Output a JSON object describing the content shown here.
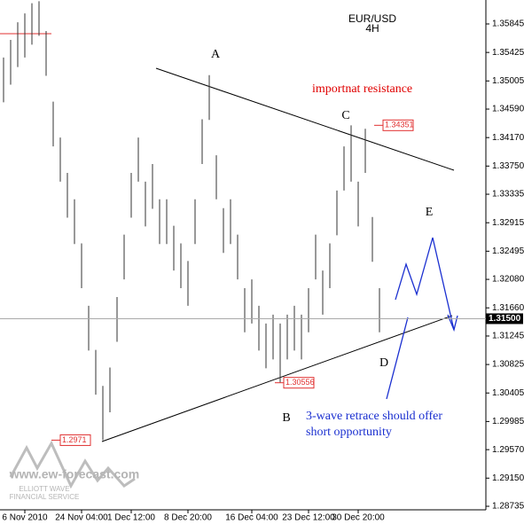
{
  "chart_data": {
    "type": "ohlc",
    "title": "EUR/USD",
    "subtitle": "4H",
    "categories": [
      null,
      null,
      null,
      "6 Nov 2010",
      null,
      null,
      null,
      null,
      null,
      null,
      null,
      "24 Nov 04:00",
      null,
      null,
      null,
      null,
      null,
      null,
      "1 Dec 12:00",
      null,
      null,
      null,
      null,
      null,
      null,
      null,
      "8 Dec 20:00",
      null,
      null,
      null,
      null,
      null,
      null,
      null,
      null,
      "16 Dec 04:00",
      null,
      null,
      null,
      null,
      null,
      null,
      null,
      "23 Dec 12:00",
      null,
      null,
      null,
      null,
      null,
      null,
      "30 Dec 20:00",
      null,
      null,
      null
    ],
    "high": [
      1.3535,
      1.3561,
      1.3587,
      1.36,
      1.3615,
      1.3618,
      1.3574,
      1.347,
      1.3417,
      1.3365,
      1.3326,
      1.3261,
      1.3169,
      1.3104,
      1.3051,
      1.3078,
      1.3182,
      1.3274,
      1.3365,
      1.3417,
      1.3352,
      1.3378,
      1.3326,
      1.3326,
      1.3287,
      1.3261,
      1.3235,
      1.3326,
      1.3444,
      1.3509,
      1.3391,
      1.3313,
      1.3326,
      1.3274,
      1.3195,
      1.3208,
      1.3169,
      1.3143,
      1.3156,
      1.3143,
      1.3156,
      1.3169,
      1.3156,
      1.3195,
      1.3274,
      1.3221,
      1.3261,
      1.3339,
      1.3404,
      1.3435,
      1.3352,
      1.343,
      1.33,
      1.3195
    ],
    "low": [
      1.3469,
      1.3495,
      1.3521,
      1.3535,
      1.3554,
      1.3567,
      1.3508,
      1.3404,
      1.3352,
      1.3299,
      1.326,
      1.3195,
      1.3103,
      1.3038,
      1.2971,
      1.3012,
      1.3116,
      1.3208,
      1.3299,
      1.3352,
      1.3286,
      1.3312,
      1.326,
      1.326,
      1.3221,
      1.3195,
      1.3169,
      1.326,
      1.3378,
      1.3443,
      1.3326,
      1.3247,
      1.326,
      1.3208,
      1.313,
      1.3143,
      1.3103,
      1.3077,
      1.309,
      1.3056,
      1.309,
      1.3103,
      1.309,
      1.313,
      1.3208,
      1.3156,
      1.3195,
      1.3273,
      1.3339,
      1.3352,
      1.3286,
      1.3365,
      1.3234,
      1.313
    ],
    "color": "#333333",
    "ylim": [
      1.28683,
      1.36198
    ],
    "yticks": [
      1.35845,
      1.35425,
      1.35005,
      {
        "value": 1.3459,
        "label": "1.34590"
      },
      {
        "value": 1.3417,
        "label": "1.34170"
      },
      {
        "value": 1.3375,
        "label": "1.33750"
      },
      1.33335,
      1.32915,
      1.32495,
      {
        "value": 1.3208,
        "label": "1.32080"
      },
      {
        "value": 1.3166,
        "label": "1.31660"
      },
      1.31245,
      1.30825,
      1.30405,
      1.29985,
      {
        "value": 1.2957,
        "label": "1.29570"
      },
      {
        "value": 1.2915,
        "label": "1.29150"
      },
      1.28735
    ],
    "current_price": {
      "value": 1.315,
      "label": "1.31500"
    },
    "price_labels": [
      1.34351,
      1.30556,
      1.2971
    ],
    "annotations": {
      "a": "A",
      "b": "B",
      "c": "C",
      "d": "D",
      "e": "E",
      "resistance": "importnat resistance",
      "note_line1": "3-wave retrace should offer",
      "note_line2": "short opportunity"
    },
    "watermark": {
      "site": "www.ew-forecast.com",
      "line1": "ELLIOTT WAVE",
      "line2": "FINANCIAL SERVICE"
    }
  }
}
